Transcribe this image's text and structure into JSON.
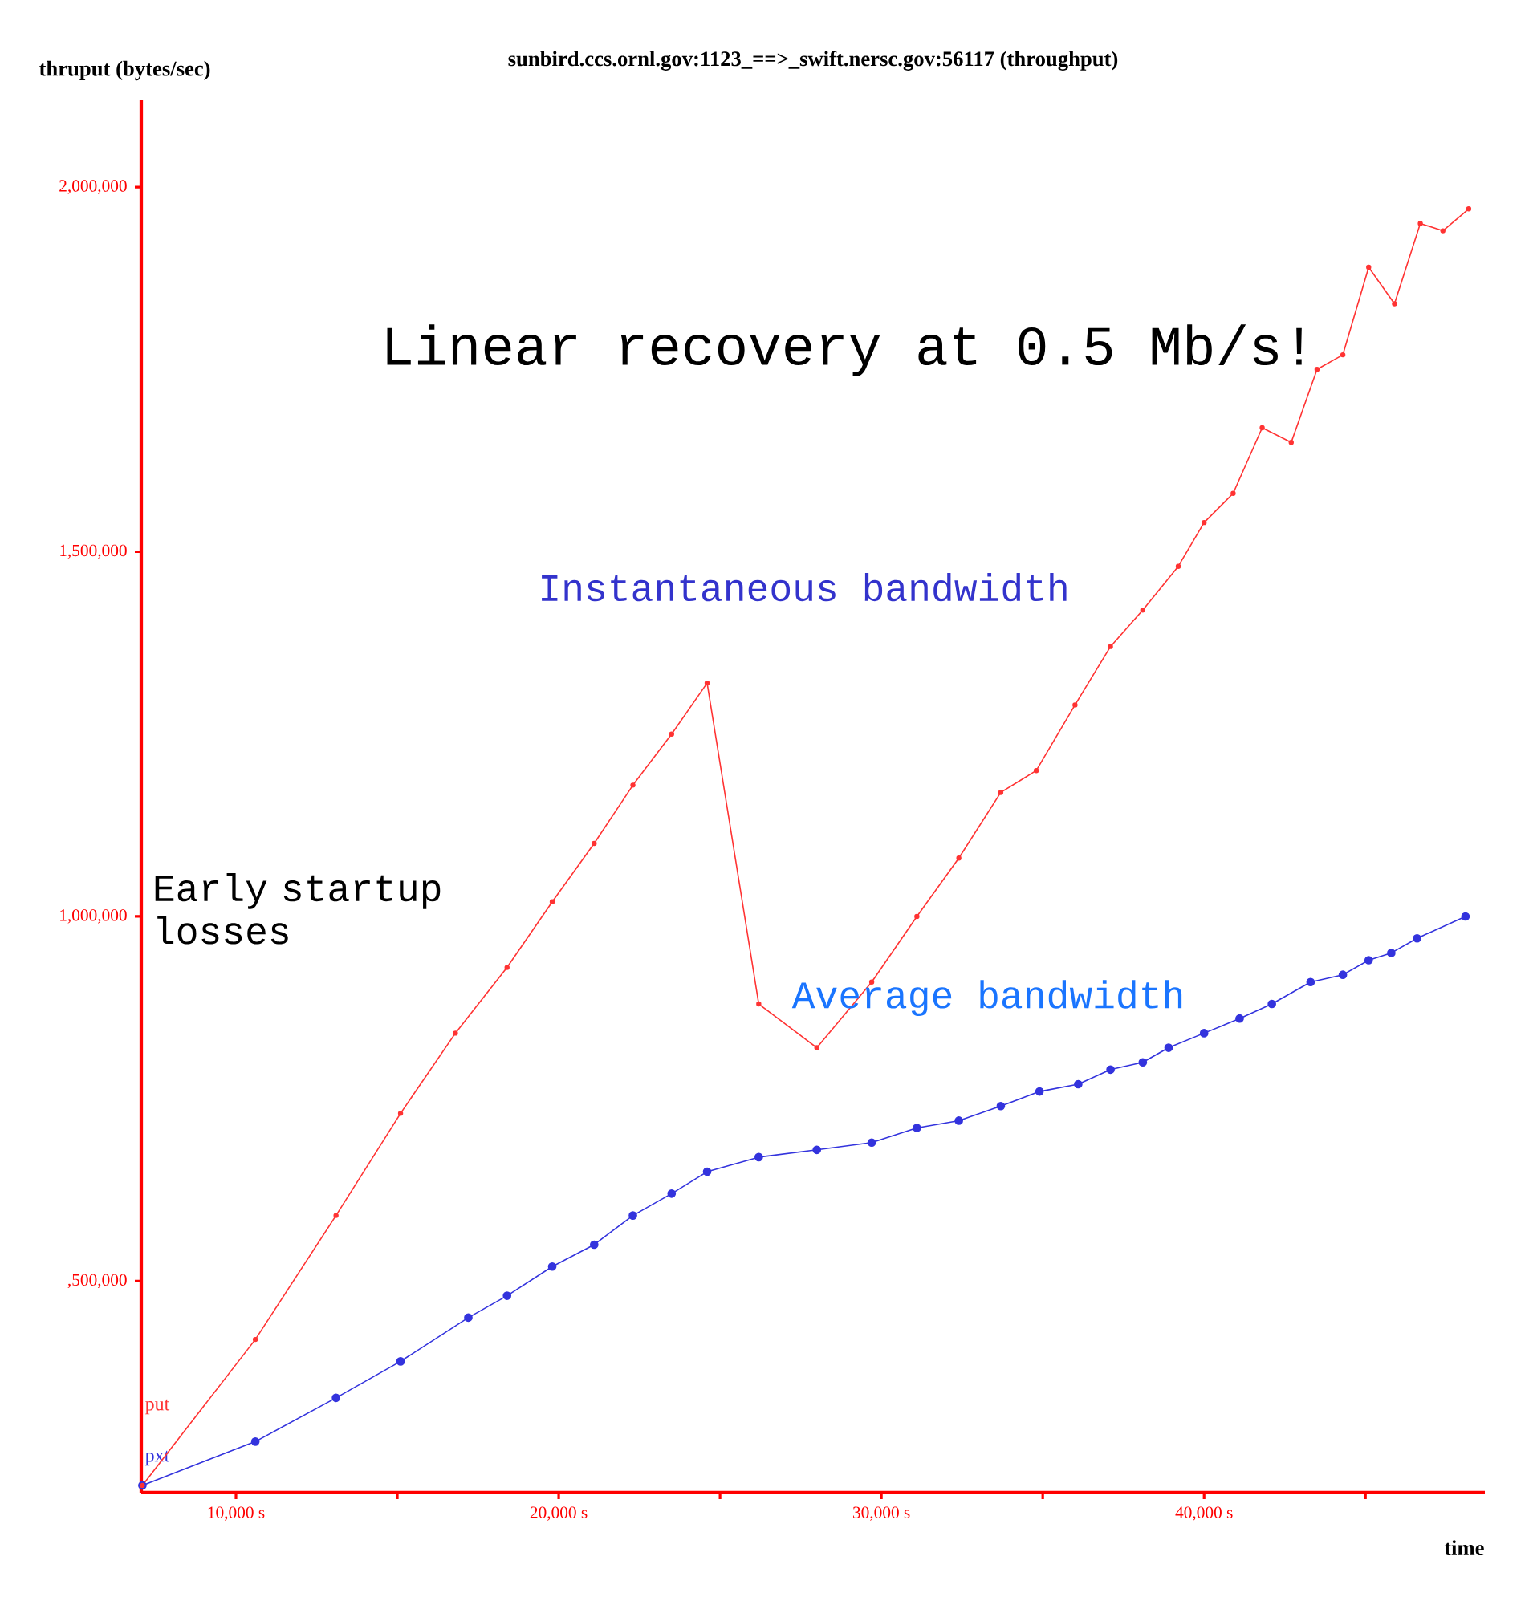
{
  "chart_data": {
    "type": "line",
    "title": "sunbird.ccs.ornl.gov:1123_==>_swift.nersc.gov:56117 (throughput)",
    "xlabel": "time",
    "ylabel": "thruput (bytes/sec)",
    "xlim": [
      7065,
      48700
    ],
    "ylim": [
      210000,
      2120000
    ],
    "xticks": [
      {
        "value": 10000,
        "label": "10,000 s"
      },
      {
        "value": 15000,
        "label": null
      },
      {
        "value": 20000,
        "label": "20,000 s"
      },
      {
        "value": 25000,
        "label": null
      },
      {
        "value": 30000,
        "label": "30,000 s"
      },
      {
        "value": 35000,
        "label": null
      },
      {
        "value": 40000,
        "label": "40,000 s"
      },
      {
        "value": 45000,
        "label": null
      }
    ],
    "yticks": [
      {
        "value": 500000,
        "label": ",500,000"
      },
      {
        "value": 1000000,
        "label": "1,000,000"
      },
      {
        "value": 1500000,
        "label": "1,500,000"
      },
      {
        "value": 2000000,
        "label": "2,000,000"
      }
    ],
    "grid": false,
    "legend": false,
    "marker": "circle",
    "line_style": "solid",
    "annotations": [
      "Linear recovery at 0.5 Mb/s!",
      "Instantaneous bandwidth",
      "Average bandwidth",
      "Early startup losses"
    ],
    "series": [
      {
        "name": "put",
        "color": "#ff3333",
        "x": [
          7100,
          10600,
          13100,
          15100,
          16800,
          18400,
          19800,
          21100,
          22300,
          23500,
          24600,
          26200,
          28000,
          29700,
          31100,
          32400,
          33700,
          34800,
          36000,
          37100,
          38100,
          39200,
          40000,
          40900,
          41800,
          42700,
          43500,
          44300,
          45100,
          45900,
          46700,
          47400,
          48200
        ],
        "values": [
          220000,
          420000,
          590000,
          730000,
          840000,
          930000,
          1020000,
          1100000,
          1180000,
          1250000,
          1320000,
          880000,
          820000,
          910000,
          1000000,
          1080000,
          1170000,
          1200000,
          1290000,
          1370000,
          1420000,
          1480000,
          1540000,
          1580000,
          1670000,
          1650000,
          1750000,
          1770000,
          1890000,
          1840000,
          1950000,
          1940000,
          1970000
        ]
      },
      {
        "name": "pxt",
        "color": "#3333dd",
        "x": [
          7100,
          10600,
          13100,
          15100,
          17200,
          18400,
          19800,
          21100,
          22300,
          23500,
          24600,
          26200,
          28000,
          29700,
          31100,
          32400,
          33700,
          34900,
          36100,
          37100,
          38100,
          38900,
          40000,
          41100,
          42100,
          43300,
          44300,
          45100,
          45800,
          46600,
          48100
        ],
        "values": [
          220000,
          280000,
          340000,
          390000,
          450000,
          480000,
          520000,
          550000,
          590000,
          620000,
          650000,
          670000,
          680000,
          690000,
          710000,
          720000,
          740000,
          760000,
          770000,
          790000,
          800000,
          820000,
          840000,
          860000,
          880000,
          910000,
          920000,
          940000,
          950000,
          970000,
          1000000
        ]
      }
    ]
  }
}
